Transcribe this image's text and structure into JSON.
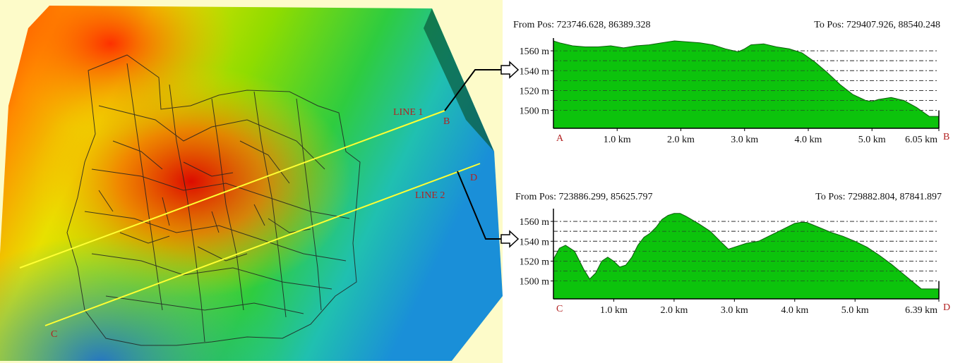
{
  "map": {
    "line1_label": "LINE 1",
    "line2_label": "LINE 2",
    "endpoint_b": "B",
    "endpoint_c": "C",
    "endpoint_d": "D"
  },
  "colors": {
    "profile_fill": "#00c000",
    "profile_stroke": "#005500",
    "line_color": "#ffff33",
    "label_red": "#b22222",
    "map_bg": "#fdfbc9"
  },
  "chart_data": [
    {
      "type": "area",
      "from_pos": "From Pos: 723746.628, 86389.328",
      "to_pos": "To Pos: 729407.926, 88540.248",
      "start_label": "A",
      "end_label": "B",
      "x_tick_labels": [
        "1.0 km",
        "2.0 km",
        "3.0 km",
        "4.0 km",
        "5.0 km",
        "6.05 km"
      ],
      "x_ticks": [
        1.0,
        2.0,
        3.0,
        4.0,
        5.0,
        6.05
      ],
      "y_tick_labels": [
        "1560 m",
        "1540 m",
        "1520 m",
        "1500 m"
      ],
      "y_ticks": [
        1560,
        1540,
        1520,
        1500
      ],
      "xlim": [
        0,
        6.05
      ],
      "ylim": [
        1482,
        1570
      ],
      "grid": true,
      "x": [
        0,
        0.1,
        0.3,
        0.5,
        0.7,
        0.9,
        1.1,
        1.3,
        1.5,
        1.7,
        1.9,
        2.1,
        2.3,
        2.5,
        2.7,
        2.9,
        3.0,
        3.1,
        3.3,
        3.5,
        3.7,
        3.9,
        4.1,
        4.3,
        4.5,
        4.7,
        4.9,
        5.0,
        5.1,
        5.3,
        5.5,
        5.7,
        5.9,
        6.05
      ],
      "y": [
        1570,
        1568,
        1565,
        1564,
        1564,
        1565,
        1563,
        1565,
        1566,
        1568,
        1570,
        1569,
        1568,
        1566,
        1562,
        1559,
        1562,
        1566,
        1567,
        1564,
        1562,
        1558,
        1549,
        1538,
        1526,
        1516,
        1510,
        1509,
        1511,
        1513,
        1510,
        1503,
        1494,
        1494
      ]
    },
    {
      "type": "area",
      "from_pos": "From Pos: 723886.299, 85625.797",
      "to_pos": "To Pos: 729882.804, 87841.897",
      "start_label": "C",
      "end_label": "D",
      "x_tick_labels": [
        "1.0 km",
        "2.0 km",
        "3.0 km",
        "4.0 km",
        "5.0 km",
        "6.39 km"
      ],
      "x_ticks": [
        1.0,
        2.0,
        3.0,
        4.0,
        5.0,
        6.39
      ],
      "y_tick_labels": [
        "1560 m",
        "1540 m",
        "1520 m",
        "1500 m"
      ],
      "y_ticks": [
        1560,
        1540,
        1520,
        1500
      ],
      "xlim": [
        0,
        6.39
      ],
      "ylim": [
        1482,
        1570
      ],
      "grid": true,
      "x": [
        0,
        0.1,
        0.2,
        0.35,
        0.5,
        0.6,
        0.7,
        0.8,
        0.9,
        1.0,
        1.1,
        1.2,
        1.3,
        1.4,
        1.5,
        1.6,
        1.7,
        1.8,
        1.9,
        2.0,
        2.1,
        2.2,
        2.4,
        2.6,
        2.8,
        2.9,
        3.0,
        3.2,
        3.4,
        3.6,
        3.8,
        4.0,
        4.1,
        4.2,
        4.4,
        4.6,
        4.8,
        5.0,
        5.2,
        5.4,
        5.6,
        5.8,
        6.0,
        6.1,
        6.2,
        6.39
      ],
      "y": [
        1522,
        1533,
        1536,
        1530,
        1512,
        1502,
        1508,
        1520,
        1524,
        1520,
        1514,
        1516,
        1524,
        1536,
        1544,
        1548,
        1554,
        1562,
        1566,
        1568,
        1568,
        1565,
        1558,
        1550,
        1538,
        1532,
        1534,
        1538,
        1540,
        1546,
        1552,
        1558,
        1559,
        1559,
        1554,
        1549,
        1545,
        1540,
        1534,
        1526,
        1517,
        1507,
        1497,
        1492,
        1492,
        1492
      ]
    }
  ]
}
